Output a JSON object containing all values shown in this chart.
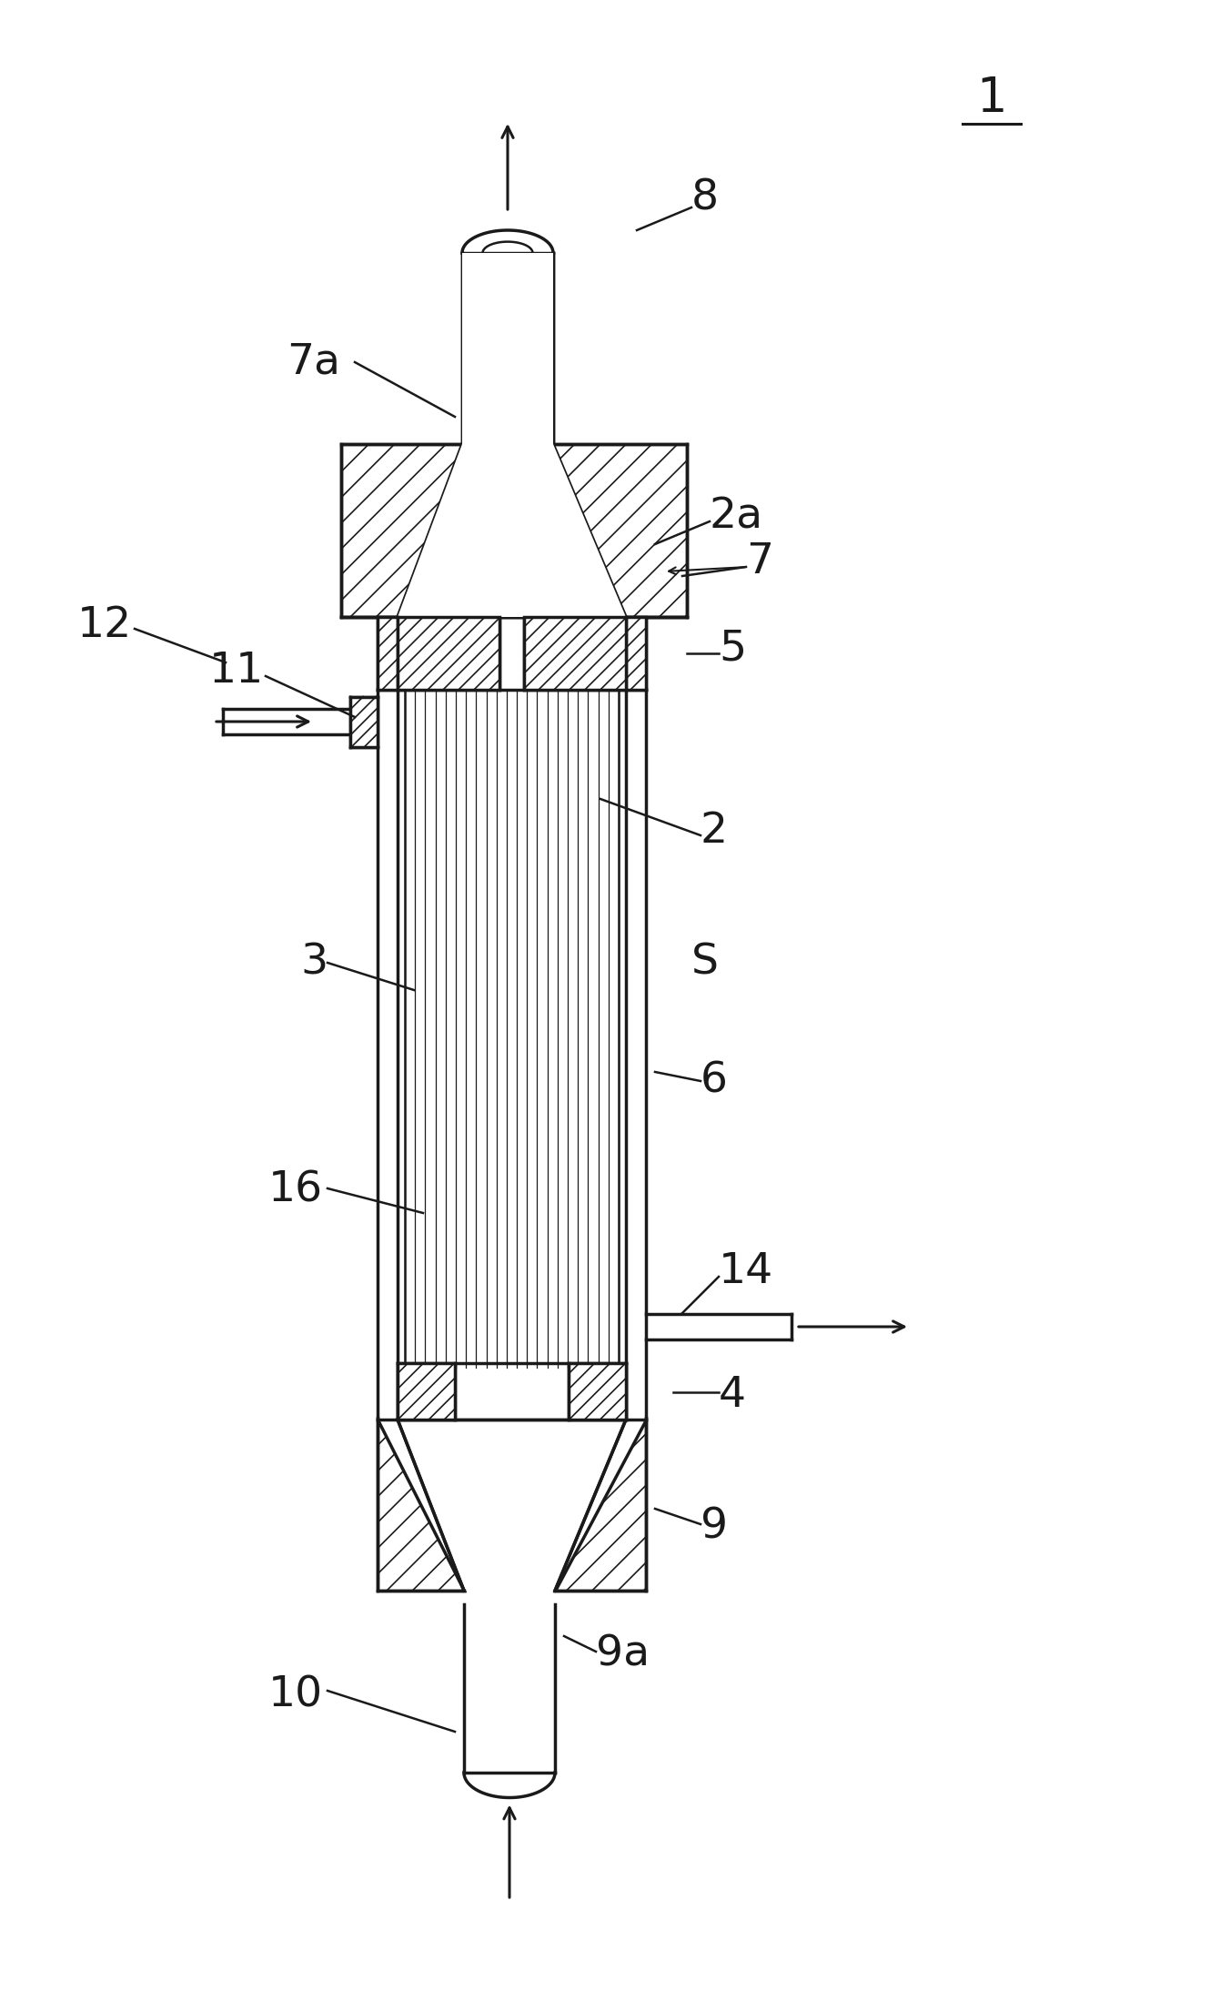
{
  "bg_color": "#ffffff",
  "line_color": "#1a1a1a",
  "fig_width": 13.41,
  "fig_height": 21.88,
  "labels": {
    "main_number": "1",
    "label_8": "8",
    "label_7a": "7a",
    "label_7": "7",
    "label_5": "5",
    "label_2": "2",
    "label_S": "S",
    "label_6": "6",
    "label_3": "3",
    "label_12": "12",
    "label_11": "11",
    "label_16": "16",
    "label_4": "4",
    "label_14": "14",
    "label_9": "9",
    "label_9a": "9a",
    "label_10": "10",
    "label_2a": "2a"
  }
}
